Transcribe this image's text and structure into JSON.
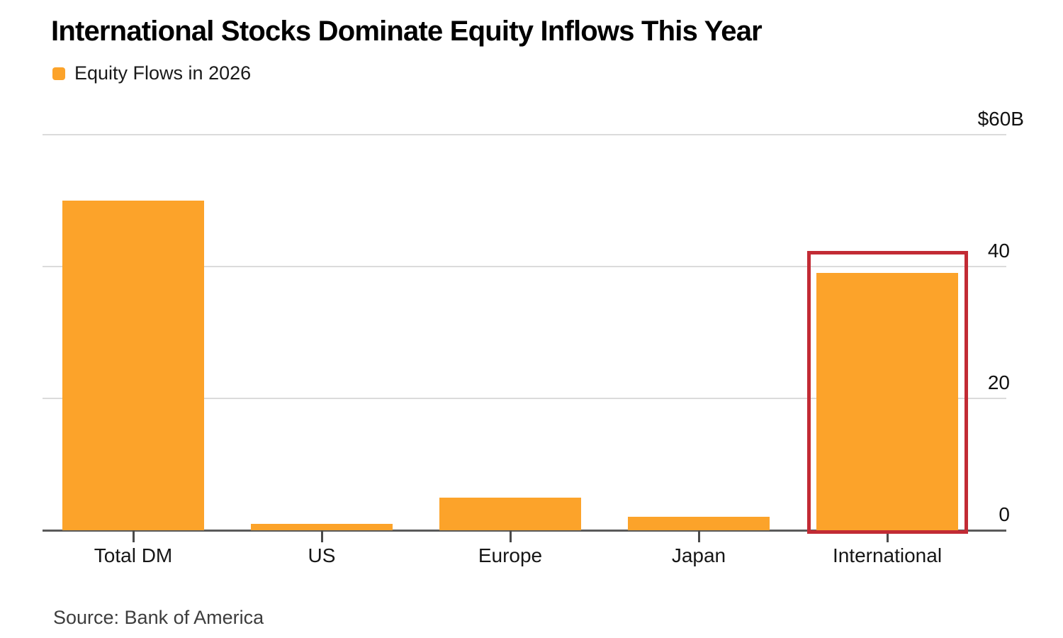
{
  "title": "International Stocks Dominate Equity Inflows This Year",
  "legend": {
    "label": "Equity Flows in 2026"
  },
  "source": "Source: Bank of America",
  "colors": {
    "bar": "#FCA32A",
    "highlight_box": "#C22B35",
    "gridline": "#DBDBDB",
    "baseline": "#5A5A5A",
    "tick": "#4A4A4A"
  },
  "chart_data": {
    "type": "bar",
    "title": "International Stocks Dominate Equity Inflows This Year",
    "series_name": "Equity Flows in 2026",
    "categories": [
      "Total DM",
      "US",
      "Europe",
      "Japan",
      "International"
    ],
    "values": [
      50,
      1,
      5,
      2,
      39
    ],
    "unit": "$B",
    "ylim": [
      0,
      60
    ],
    "yticks": [
      {
        "value": 60,
        "label": "$60B"
      },
      {
        "value": 40,
        "label": "40"
      },
      {
        "value": 20,
        "label": "20"
      },
      {
        "value": 0,
        "label": "0"
      }
    ],
    "grid": true,
    "legend_position": "top-left",
    "ytick_side": "right",
    "highlight": {
      "category": "International"
    },
    "source": "Source: Bank of America"
  }
}
